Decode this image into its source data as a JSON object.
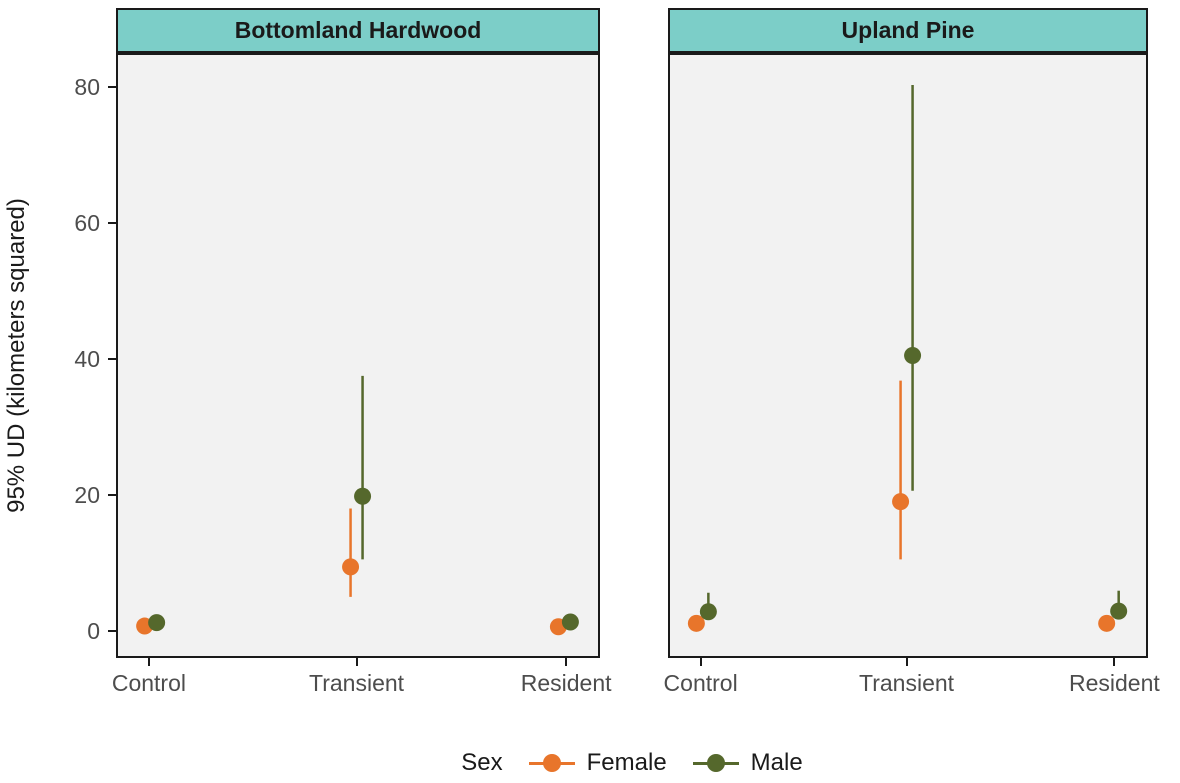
{
  "figure": {
    "strip_bg": "#7CCEC8",
    "panel_bg": "#F2F2F2",
    "border_color": "#1A1A1A",
    "axis_text_color": "#4D4D4D"
  },
  "legend": {
    "title": "Sex",
    "items": [
      {
        "label": "Female",
        "color": "#E8752B"
      },
      {
        "label": "Male",
        "color": "#55682C"
      }
    ]
  },
  "chart_data": {
    "type": "pointrange",
    "title": "",
    "xlabel": "",
    "ylabel": "95% UD (kilometers squared)",
    "ylim": [
      -4,
      85
    ],
    "yticks": [
      0,
      20,
      40,
      60,
      80
    ],
    "grid": "off",
    "legend_position": "bottom",
    "categories": [
      "Control",
      "Transient",
      "Resident"
    ],
    "facets": [
      {
        "label": "Bottomland Hardwood",
        "series": [
          {
            "name": "Female",
            "color": "#E8752B",
            "points": [
              {
                "category": "Control",
                "mean": 0.7,
                "lo": 0.3,
                "hi": 1.3
              },
              {
                "category": "Transient",
                "mean": 9.4,
                "lo": 5.0,
                "hi": 18.0
              },
              {
                "category": "Resident",
                "mean": 0.6,
                "lo": 0.3,
                "hi": 1.1
              }
            ]
          },
          {
            "name": "Male",
            "color": "#55682C",
            "points": [
              {
                "category": "Control",
                "mean": 1.2,
                "lo": 0.6,
                "hi": 2.3
              },
              {
                "category": "Transient",
                "mean": 19.8,
                "lo": 10.5,
                "hi": 37.5
              },
              {
                "category": "Resident",
                "mean": 1.3,
                "lo": 0.7,
                "hi": 2.1
              }
            ]
          }
        ]
      },
      {
        "label": "Upland Pine",
        "series": [
          {
            "name": "Female",
            "color": "#E8752B",
            "points": [
              {
                "category": "Control",
                "mean": 1.1,
                "lo": 0.6,
                "hi": 1.8
              },
              {
                "category": "Transient",
                "mean": 19.0,
                "lo": 10.5,
                "hi": 36.8
              },
              {
                "category": "Resident",
                "mean": 1.1,
                "lo": 0.6,
                "hi": 1.9
              }
            ]
          },
          {
            "name": "Male",
            "color": "#55682C",
            "points": [
              {
                "category": "Control",
                "mean": 2.8,
                "lo": 1.6,
                "hi": 5.6
              },
              {
                "category": "Transient",
                "mean": 40.5,
                "lo": 20.6,
                "hi": 80.3
              },
              {
                "category": "Resident",
                "mean": 2.9,
                "lo": 1.7,
                "hi": 5.9
              }
            ]
          }
        ]
      }
    ]
  }
}
